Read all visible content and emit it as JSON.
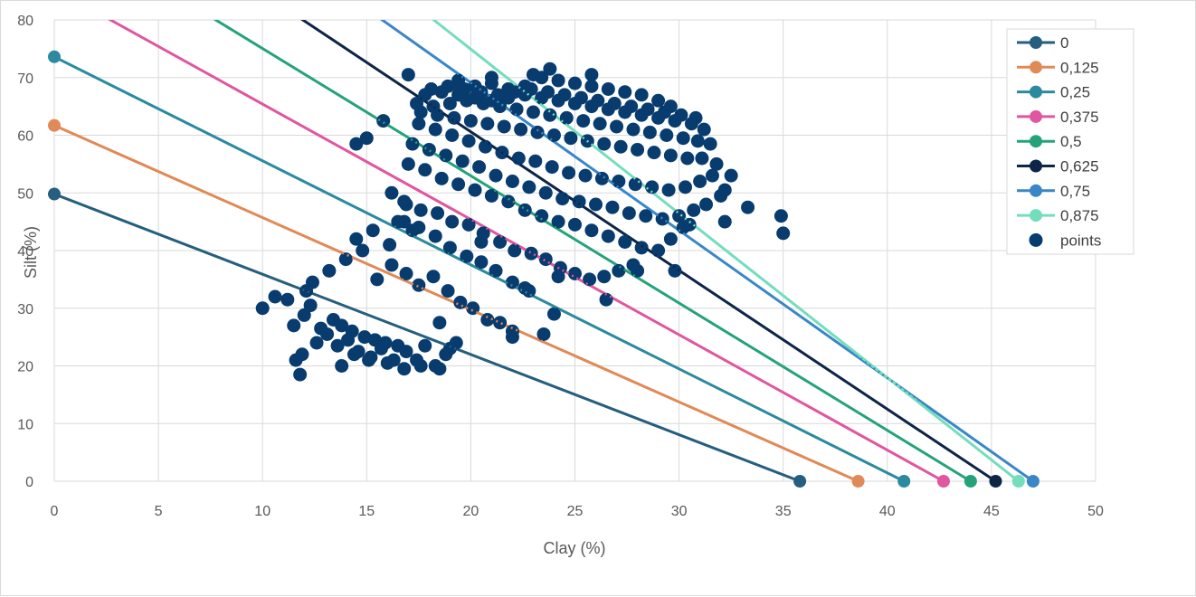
{
  "chart_data": {
    "type": "scatter",
    "title": "",
    "xlabel": "Clay (%)",
    "ylabel": "Silt (%)",
    "xlim": [
      0,
      50
    ],
    "ylim": [
      0,
      80
    ],
    "x_ticks": [
      "0",
      "5",
      "10",
      "15",
      "20",
      "25",
      "30",
      "35",
      "40",
      "45",
      "50"
    ],
    "y_ticks": [
      "0",
      "10",
      "20",
      "30",
      "40",
      "50",
      "60",
      "70",
      "80"
    ],
    "grid": "vertical-and-horizontal",
    "legend_position": "right",
    "series": [
      {
        "name": "0",
        "type": "line",
        "color": "#255E7E",
        "x": [
          0,
          35.8
        ],
        "y": [
          49.8,
          0
        ]
      },
      {
        "name": "0,125",
        "type": "line",
        "color": "#E08A57",
        "x": [
          0,
          38.6
        ],
        "y": [
          61.7,
          0
        ]
      },
      {
        "name": "0,25",
        "type": "line",
        "color": "#2B8A9E",
        "x": [
          0,
          40.8
        ],
        "y": [
          73.6,
          0
        ]
      },
      {
        "name": "0,375",
        "type": "line",
        "color": "#E0569F",
        "x": [
          0,
          42.7
        ],
        "y": [
          85.4,
          0
        ]
      },
      {
        "name": "0,5",
        "type": "line",
        "color": "#24A37A",
        "x": [
          0,
          44.0
        ],
        "y": [
          97.1,
          0
        ]
      },
      {
        "name": "0,625",
        "type": "line",
        "color": "#0D2547",
        "x": [
          0,
          45.2
        ],
        "y": [
          108.7,
          0
        ]
      },
      {
        "name": "0,75",
        "type": "line",
        "color": "#3A87C8",
        "x": [
          0,
          47.0
        ],
        "y": [
          120.3,
          0
        ]
      },
      {
        "name": "0,875",
        "type": "line",
        "color": "#74DDBC",
        "x": [
          0,
          46.3
        ],
        "y": [
          131.9,
          0
        ]
      }
    ],
    "points": {
      "name": "points",
      "color": "#083B6E",
      "x": [
        10.0,
        10.6,
        11.2,
        11.5,
        12.0,
        12.3,
        12.8,
        13.4,
        13.8,
        14.3,
        14.9,
        15.4,
        15.9,
        16.5,
        11.6,
        11.9,
        12.6,
        13.1,
        13.6,
        14.1,
        14.6,
        15.2,
        15.7,
        16.3,
        16.9,
        17.4,
        17.8,
        18.3,
        18.8,
        19.3,
        11.8,
        12.1,
        13.8,
        14.4,
        15.1,
        16.0,
        16.8,
        17.6,
        18.5,
        12.4,
        13.2,
        14.0,
        14.8,
        15.5,
        16.2,
        16.9,
        17.5,
        18.2,
        18.9,
        19.5,
        20.1,
        20.8,
        21.4,
        22.0,
        14.5,
        15.3,
        16.1,
        16.8,
        17.5,
        18.3,
        19.0,
        19.8,
        20.5,
        21.2,
        22.0,
        22.6,
        16.2,
        16.9,
        17.6,
        18.4,
        19.1,
        19.9,
        20.6,
        21.4,
        22.1,
        22.9,
        23.6,
        24.3,
        25.0,
        25.7,
        26.4,
        27.1,
        27.8,
        17.0,
        17.8,
        18.6,
        19.4,
        20.2,
        21.0,
        21.8,
        22.6,
        23.4,
        24.2,
        25.0,
        25.8,
        26.6,
        27.4,
        28.2,
        29.0,
        29.6,
        30.2,
        17.2,
        18.0,
        18.8,
        19.6,
        20.4,
        21.2,
        22.0,
        22.8,
        23.6,
        24.4,
        25.2,
        26.0,
        26.8,
        27.6,
        28.4,
        29.2,
        30.0,
        30.7,
        31.3,
        32.0,
        17.5,
        18.3,
        19.1,
        19.9,
        20.7,
        21.5,
        22.3,
        23.1,
        23.9,
        24.7,
        25.5,
        26.3,
        27.1,
        27.9,
        28.7,
        29.5,
        30.3,
        31.0,
        31.6,
        32.2,
        17.6,
        18.4,
        19.2,
        20.0,
        20.8,
        21.6,
        22.4,
        23.2,
        24.0,
        24.8,
        25.6,
        26.4,
        27.2,
        28.0,
        28.8,
        29.6,
        30.4,
        31.1,
        31.8,
        32.5,
        33.3,
        34.9,
        35.0,
        17.4,
        18.2,
        19.0,
        19.8,
        20.6,
        21.4,
        22.2,
        23.0,
        23.8,
        24.6,
        25.4,
        26.2,
        27.0,
        27.8,
        28.6,
        29.4,
        30.2,
        30.9,
        31.5,
        17.8,
        18.6,
        19.4,
        20.2,
        21.0,
        21.8,
        22.6,
        23.4,
        24.2,
        25.0,
        25.8,
        26.6,
        27.4,
        28.2,
        29.0,
        29.8,
        30.6,
        31.2,
        18.1,
        18.9,
        19.7,
        20.5,
        21.3,
        22.1,
        22.9,
        23.7,
        24.5,
        25.3,
        26.1,
        26.9,
        27.7,
        28.5,
        29.3,
        30.1,
        30.8,
        19.4,
        20.2,
        21.0,
        21.8,
        22.6,
        23.4,
        24.2,
        25.0,
        25.8,
        26.6,
        27.4,
        28.2,
        29.0,
        29.6,
        17.0,
        19.5,
        21.0,
        23.0,
        23.8,
        25.8,
        16.5,
        23.5,
        22.0,
        24.0,
        19.0,
        26.5,
        28.0,
        24.2,
        20.5,
        18.5,
        17.2,
        16.8,
        22.8,
        29.8,
        32.2,
        30.5,
        15.0,
        14.5,
        15.8
      ],
      "y": [
        30.0,
        32.0,
        31.5,
        27.0,
        28.8,
        30.5,
        26.5,
        28.0,
        27.0,
        26.0,
        25.0,
        24.5,
        24.0,
        23.5,
        21.0,
        22.0,
        24.0,
        25.5,
        23.5,
        24.5,
        22.5,
        21.5,
        23.0,
        21.0,
        22.5,
        21.0,
        23.5,
        20.0,
        22.0,
        24.0,
        18.5,
        33.0,
        20.0,
        22.0,
        21.0,
        20.5,
        19.5,
        20.0,
        19.5,
        34.5,
        36.5,
        38.5,
        40.0,
        35.0,
        37.5,
        36.0,
        34.0,
        35.5,
        33.0,
        31.0,
        30.0,
        28.0,
        27.5,
        26.0,
        42.0,
        43.5,
        41.0,
        45.0,
        44.0,
        42.5,
        40.5,
        39.0,
        38.0,
        36.5,
        34.5,
        33.5,
        50.0,
        48.0,
        47.0,
        46.5,
        45.0,
        44.5,
        43.0,
        41.5,
        40.0,
        39.5,
        38.5,
        37.0,
        36.0,
        35.0,
        35.5,
        36.5,
        37.5,
        55.0,
        54.0,
        52.5,
        51.5,
        50.5,
        49.5,
        48.5,
        47.0,
        46.0,
        45.0,
        44.5,
        43.5,
        42.5,
        41.5,
        40.5,
        40.0,
        42.0,
        44.0,
        58.5,
        57.5,
        56.5,
        55.5,
        54.5,
        53.0,
        52.0,
        51.0,
        50.0,
        49.0,
        48.5,
        48.0,
        47.5,
        46.5,
        46.0,
        45.5,
        46.0,
        47.0,
        48.0,
        49.5,
        62.0,
        61.0,
        60.0,
        59.0,
        58.0,
        57.0,
        56.0,
        55.5,
        54.5,
        53.5,
        53.0,
        52.5,
        52.0,
        51.5,
        51.0,
        50.5,
        51.0,
        52.0,
        53.0,
        50.5,
        64.0,
        63.5,
        63.0,
        62.5,
        62.0,
        61.5,
        61.0,
        60.5,
        60.0,
        59.5,
        59.0,
        58.5,
        58.0,
        57.5,
        57.0,
        56.5,
        56.0,
        56.0,
        55.0,
        53.0,
        47.5,
        46.0,
        43.0,
        65.5,
        65.0,
        65.5,
        66.0,
        65.5,
        65.0,
        64.5,
        64.0,
        63.5,
        63.0,
        62.5,
        62.0,
        61.5,
        61.0,
        60.5,
        60.0,
        59.5,
        59.0,
        58.5,
        67.0,
        67.5,
        67.0,
        66.5,
        66.0,
        66.5,
        67.0,
        66.5,
        66.0,
        65.5,
        65.0,
        64.5,
        64.0,
        63.5,
        63.0,
        62.5,
        62.0,
        61.0,
        68.0,
        68.5,
        68.0,
        67.5,
        67.0,
        67.5,
        68.0,
        67.5,
        67.0,
        66.5,
        66.0,
        65.5,
        65.0,
        64.5,
        64.0,
        63.5,
        63.0,
        69.5,
        68.5,
        69.0,
        68.0,
        68.5,
        70.0,
        69.5,
        69.0,
        68.5,
        68.0,
        67.5,
        67.0,
        66.0,
        65.0,
        70.5,
        68.0,
        70.0,
        70.5,
        71.5,
        70.5,
        45.0,
        25.5,
        25.0,
        29.0,
        23.0,
        31.5,
        36.5,
        35.5,
        41.5,
        27.5,
        43.5,
        48.5,
        33.0,
        36.5,
        45.0,
        44.5,
        59.5,
        58.5,
        62.5
      ]
    },
    "legend": [
      "0",
      "0,125",
      "0,25",
      "0,375",
      "0,5",
      "0,625",
      "0,75",
      "0,875",
      "points"
    ]
  }
}
